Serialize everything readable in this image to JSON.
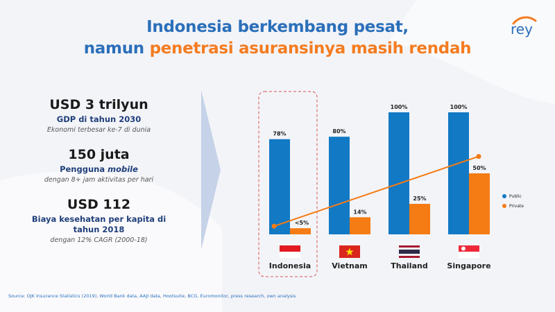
{
  "title": {
    "line1": "Indonesia berkembang pesat,",
    "line2_prefix": "namun ",
    "line2_accent": "penetrasi asuransinya masih rendah"
  },
  "logo": {
    "text": "rey"
  },
  "stats": [
    {
      "value": "USD 3 trilyun",
      "label": "GDP di tahun 2030",
      "note": "Ekonomi terbesar ke-7 di dunia"
    },
    {
      "value": "150 juta",
      "label_prefix": "Pengguna ",
      "label_em": "mobile",
      "note": "dengan 8+ jam aktivitas per hari"
    },
    {
      "value": "USD 112",
      "label": "Biaya kesehatan per kapita di tahun 2018",
      "note": "dengan 12% CAGR (2000-18)"
    }
  ],
  "source": "Source: OJK Insurance Statistics (2019), World Bank data, AAJI data, Hootsuite, BCG, Euromonitor, press research, own analysis",
  "colors": {
    "public": "#1279c4",
    "private": "#f57b14",
    "title_blue": "#2b6fba",
    "accent": "#f47c20"
  },
  "chart_data": {
    "type": "bar",
    "categories": [
      "Indonesia",
      "Vietnam",
      "Thailand",
      "Singapore"
    ],
    "series": [
      {
        "name": "Public",
        "values": [
          78,
          80,
          100,
          100
        ],
        "labels": [
          "78%",
          "80%",
          "100%",
          "100%"
        ]
      },
      {
        "name": "Private",
        "values": [
          5,
          14,
          25,
          50
        ],
        "labels": [
          "<5%",
          "14%",
          "25%",
          "50%"
        ]
      }
    ],
    "trend_line": {
      "series": "Private",
      "from_category": "Indonesia",
      "to_category": "Singapore",
      "from_value": 5,
      "to_value": 65
    },
    "highlight_category": "Indonesia",
    "ylim": [
      0,
      100
    ],
    "legend": "right",
    "grid": false
  }
}
